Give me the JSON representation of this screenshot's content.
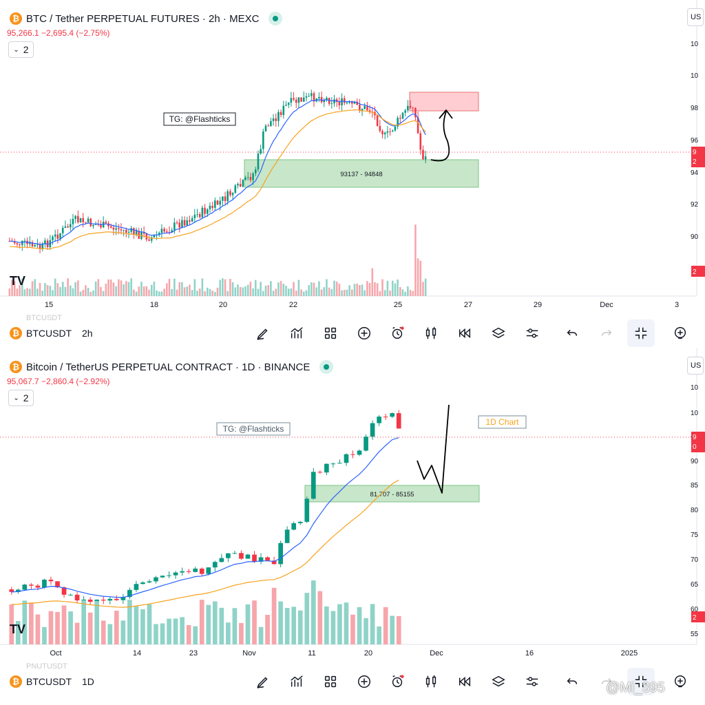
{
  "top_pane": {
    "title": "BTC / Tether PERPETUAL FUTURES · 2h · MEXC",
    "price_line": "95,266.1 −2,695.4 (−2.75%)",
    "collapse_count": "2",
    "currency_button": "US",
    "price_scale_labels": [
      "10",
      "10",
      "98",
      "96",
      "94",
      "92",
      "90"
    ],
    "last_price_tags": [
      "9",
      "2"
    ],
    "volume_tag": "2",
    "time_labels": [
      "15",
      "18",
      "20",
      "22",
      "25",
      "27",
      "29",
      "Dec",
      "3"
    ],
    "annotation_label": "TG: @Flashticks",
    "zone_label": "93137 - 94848",
    "ghost_symbol": "BTCUSDT"
  },
  "top_toolbar": {
    "symbol": "BTCUSDT",
    "interval": "2h"
  },
  "bottom_pane": {
    "title": "Bitcoin / TetherUS PERPETUAL CONTRACT · 1D · BINANCE",
    "price_line": "95,067.7 −2,860.4 (−2.92%)",
    "collapse_count": "2",
    "currency_button": "US",
    "price_scale_labels": [
      "10",
      "10",
      "9",
      "90",
      "85",
      "80",
      "75",
      "70",
      "65",
      "60",
      "55"
    ],
    "last_price_tags": [
      "9",
      "0"
    ],
    "volume_tag": "2",
    "time_labels": [
      "Oct",
      "14",
      "23",
      "Nov",
      "11",
      "20",
      "Dec",
      "16",
      "2025"
    ],
    "annotation_label": "TG: @Flashticks",
    "chart_label": "1D Chart",
    "zone_label": "81,707 - 85155",
    "ghost_symbol": "PNUTUSDT"
  },
  "bottom_toolbar": {
    "symbol": "BTCUSDT",
    "interval": "1D"
  },
  "colors": {
    "up": "#089981",
    "down": "#f23645",
    "ema_fast": "#2962ff",
    "ema_slow": "#f7a21b",
    "demand_zone": "#c8e6c9",
    "supply_zone": "#ffcdd2"
  },
  "toolbar_icons": [
    "pencil-icon",
    "indicators-icon",
    "grid-icon",
    "plus-icon",
    "alarm-icon",
    "candles-icon",
    "replay-icon",
    "layers-icon",
    "settings-icon",
    "undo-icon",
    "redo-icon",
    "collapse-icon",
    "more-icon"
  ],
  "watermark": "@Mi_395",
  "chart_data": [
    {
      "type": "candlestick",
      "title": "BTC / Tether PERPETUAL FUTURES · 2h · MEXC",
      "x_ticks": [
        "15",
        "18",
        "20",
        "22",
        "25",
        "27",
        "29",
        "Dec",
        "3"
      ],
      "series": [
        {
          "name": "EMA fast"
        },
        {
          "name": "EMA slow"
        },
        {
          "name": "Volume"
        }
      ],
      "zones": [
        {
          "label": "93137 - 94848",
          "low": 93137,
          "high": 94848,
          "kind": "demand"
        },
        {
          "label": "",
          "kind": "supply"
        }
      ],
      "last_price": 95266.1,
      "change": -2695.4,
      "change_pct": -2.75
    },
    {
      "type": "candlestick",
      "title": "Bitcoin / TetherUS PERPETUAL CONTRACT · 1D · BINANCE",
      "x_ticks": [
        "Oct",
        "14",
        "23",
        "Nov",
        "11",
        "20",
        "Dec",
        "16",
        "2025"
      ],
      "series": [
        {
          "name": "EMA fast"
        },
        {
          "name": "EMA slow"
        },
        {
          "name": "Volume"
        }
      ],
      "zones": [
        {
          "label": "81,707 - 85155",
          "low": 81707,
          "high": 85155,
          "kind": "demand"
        }
      ],
      "last_price": 95067.7,
      "change": -2860.4,
      "change_pct": -2.92
    }
  ]
}
